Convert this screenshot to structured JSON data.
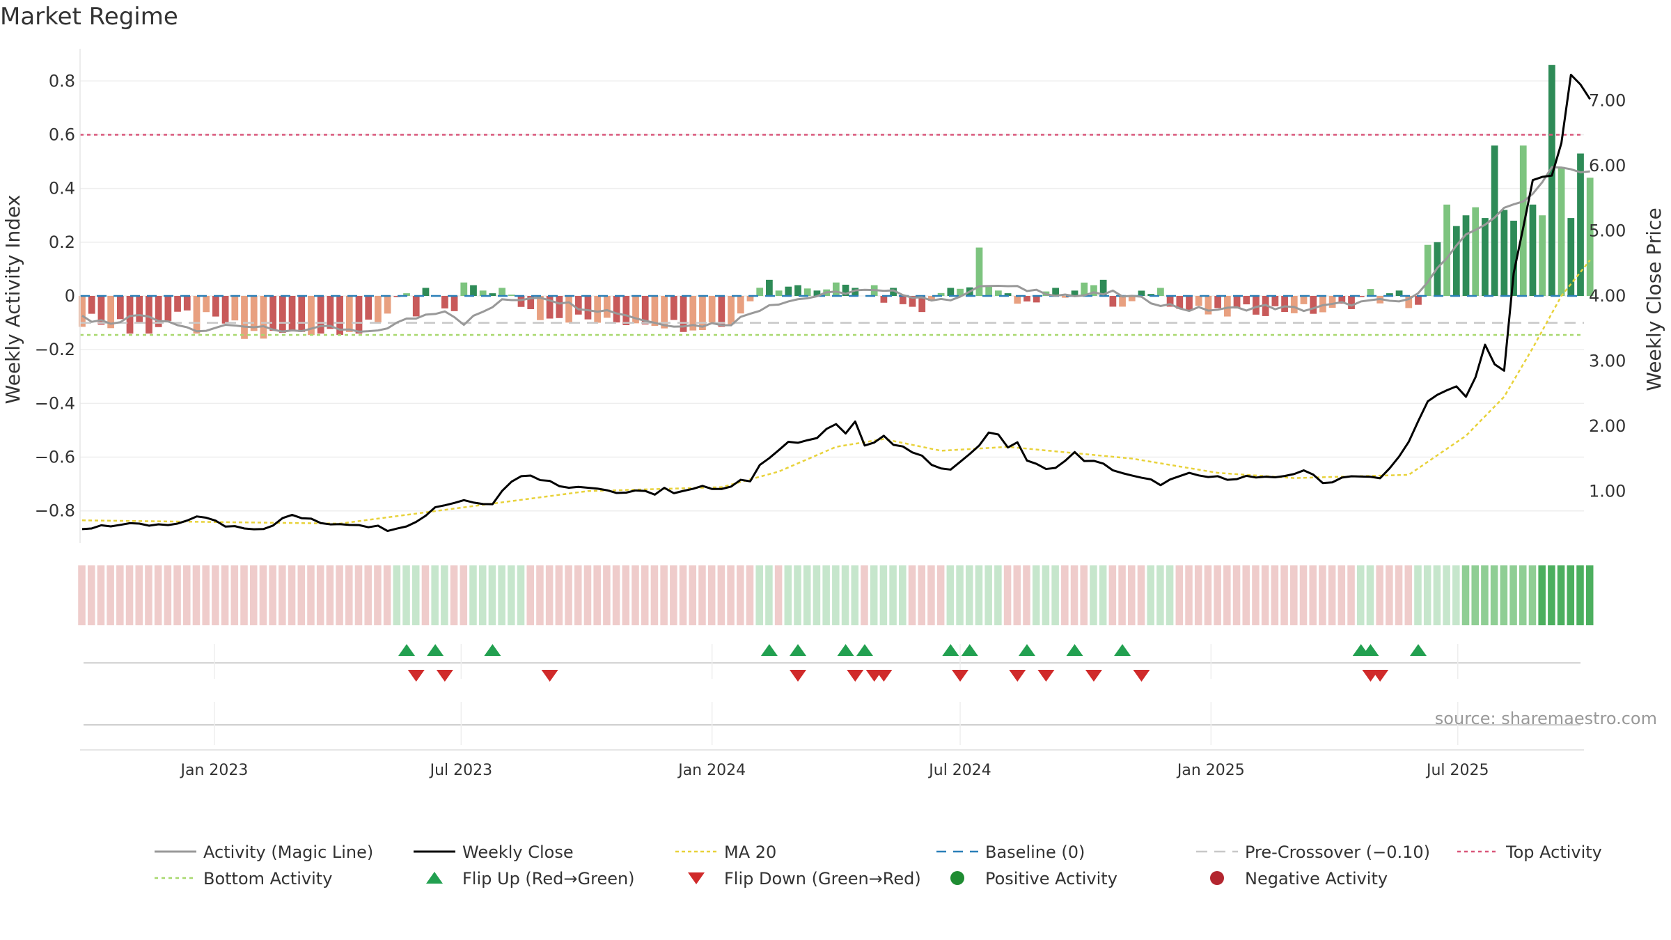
{
  "page": {
    "title": "Market Regime",
    "source": "source: sharemaestro.com"
  },
  "colors": {
    "magic_line": "#999999",
    "close": "#000000",
    "ma": "#e8d23a",
    "baseline": "#2a7fb8",
    "pre_crossover": "#c8c8c8",
    "top": "#d9577a",
    "bottom": "#a8d86e",
    "flip_up": "#22a050",
    "flip_down": "#d02a2a",
    "pos_dark": "#2e8b57",
    "pos_light": "#7dc47f",
    "neg_dark": "#c85a5a",
    "neg_light": "#e8a080",
    "band_pos": "#c6e6cc",
    "band_neg": "#efcccb"
  },
  "chart_data": {
    "type": "bar",
    "title": "Market Regime",
    "y_left_label": "Weekly Activity Index",
    "y_right_label": "Weekly Close Price",
    "y_left_range": [
      -0.92,
      0.92
    ],
    "y_left_ticks": [
      "0.8",
      "0.6",
      "0.4",
      "0.2",
      "0",
      "−0.2",
      "−0.4",
      "−0.6",
      "−0.8"
    ],
    "y_left_tick_values": [
      0.8,
      0.6,
      0.4,
      0.2,
      0,
      -0.2,
      -0.4,
      -0.6,
      -0.8
    ],
    "y_right_range": [
      0.2,
      7.8
    ],
    "y_right_ticks": [
      "7.00",
      "6.00",
      "5.00",
      "4.00",
      "3.00",
      "2.00",
      "1.00"
    ],
    "y_right_tick_values": [
      7,
      6,
      5,
      4,
      3,
      2,
      1
    ],
    "x_range": [
      "2022-09-26",
      "2025-09-29"
    ],
    "x_ticks": [
      {
        "date": "2023-01-01",
        "label": "Jan 2023"
      },
      {
        "date": "2023-07-01",
        "label": "Jul 2023"
      },
      {
        "date": "2024-01-01",
        "label": "Jan 2024"
      },
      {
        "date": "2024-07-01",
        "label": "Jul 2024"
      },
      {
        "date": "2025-01-01",
        "label": "Jan 2025"
      },
      {
        "date": "2025-07-01",
        "label": "Jul 2025"
      }
    ],
    "top_activity": 0.6,
    "bottom_activity": -0.145,
    "pre_crossover": -0.1,
    "baseline": 0,
    "activity_anchors": [
      [
        "2022-09-26",
        -0.08
      ],
      [
        "2022-10-17",
        -0.11
      ],
      [
        "2022-11-07",
        -0.07
      ],
      [
        "2022-12-19",
        -0.13
      ],
      [
        "2023-01-16",
        -0.1
      ],
      [
        "2023-02-13",
        -0.13
      ],
      [
        "2023-03-27",
        -0.12
      ],
      [
        "2023-04-24",
        -0.14
      ],
      [
        "2023-05-22",
        -0.09
      ],
      [
        "2023-06-19",
        -0.05
      ],
      [
        "2023-07-03",
        -0.1
      ],
      [
        "2023-07-31",
        -0.02
      ],
      [
        "2023-08-28",
        0.0
      ],
      [
        "2023-09-25",
        -0.04
      ],
      [
        "2023-10-23",
        -0.06
      ],
      [
        "2023-11-20",
        -0.1
      ],
      [
        "2023-12-18",
        -0.11
      ],
      [
        "2024-01-15",
        -0.1
      ],
      [
        "2024-02-12",
        -0.03
      ],
      [
        "2024-03-18",
        0.0
      ],
      [
        "2024-04-15",
        0.02
      ],
      [
        "2024-05-20",
        0.01
      ],
      [
        "2024-06-17",
        -0.02
      ],
      [
        "2024-07-22",
        0.04
      ],
      [
        "2024-08-26",
        0.02
      ],
      [
        "2024-09-23",
        0.0
      ],
      [
        "2024-10-21",
        0.01
      ],
      [
        "2024-11-18",
        -0.02
      ],
      [
        "2024-12-16",
        -0.05
      ],
      [
        "2025-01-13",
        -0.05
      ],
      [
        "2025-02-10",
        -0.04
      ],
      [
        "2025-03-10",
        -0.05
      ],
      [
        "2025-04-07",
        -0.03
      ],
      [
        "2025-05-05",
        -0.02
      ],
      [
        "2025-05-26",
        -0.02
      ],
      [
        "2025-06-16",
        0.1
      ],
      [
        "2025-07-07",
        0.22
      ],
      [
        "2025-08-04",
        0.32
      ],
      [
        "2025-08-25",
        0.38
      ],
      [
        "2025-09-08",
        0.48
      ],
      [
        "2025-09-29",
        0.46
      ]
    ],
    "bar_anchors": [
      [
        "2022-09-26",
        -0.09
      ],
      [
        "2022-10-24",
        -0.08
      ],
      [
        "2022-11-14",
        -0.12
      ],
      [
        "2022-12-12",
        -0.07
      ],
      [
        "2023-01-09",
        -0.1
      ],
      [
        "2023-02-06",
        -0.15
      ],
      [
        "2023-03-06",
        -0.13
      ],
      [
        "2023-04-03",
        -0.12
      ],
      [
        "2023-05-01",
        -0.11
      ],
      [
        "2023-05-15",
        0.0
      ],
      [
        "2023-05-29",
        -0.08
      ],
      [
        "2023-06-12",
        -0.02
      ],
      [
        "2023-06-26",
        -0.07
      ],
      [
        "2023-07-10",
        0.05
      ],
      [
        "2023-07-31",
        0.01
      ],
      [
        "2023-08-21",
        -0.05
      ],
      [
        "2023-09-18",
        -0.08
      ],
      [
        "2023-10-16",
        -0.1
      ],
      [
        "2023-11-13",
        -0.09
      ],
      [
        "2023-12-11",
        -0.11
      ],
      [
        "2024-01-15",
        -0.1
      ],
      [
        "2024-02-05",
        0.03
      ],
      [
        "2024-02-26",
        0.05
      ],
      [
        "2024-03-25",
        0.04
      ],
      [
        "2024-04-22",
        0.02
      ],
      [
        "2024-05-20",
        -0.03
      ],
      [
        "2024-06-10",
        -0.04
      ],
      [
        "2024-06-24",
        0.03
      ],
      [
        "2024-07-08",
        0.02
      ],
      [
        "2024-07-15",
        0.18
      ],
      [
        "2024-07-29",
        0.02
      ],
      [
        "2024-08-19",
        -0.02
      ],
      [
        "2024-09-16",
        0.01
      ],
      [
        "2024-10-07",
        0.04
      ],
      [
        "2024-10-21",
        -0.04
      ],
      [
        "2024-11-18",
        0.03
      ],
      [
        "2024-12-02",
        -0.04
      ],
      [
        "2025-01-06",
        -0.07
      ],
      [
        "2025-02-03",
        -0.05
      ],
      [
        "2025-03-03",
        -0.05
      ],
      [
        "2025-03-31",
        -0.06
      ],
      [
        "2025-04-28",
        0.01
      ],
      [
        "2025-05-12",
        -0.03
      ],
      [
        "2025-06-02",
        -0.03
      ]
    ],
    "bar_overrides": [
      [
        "2022-10-17",
        -0.12
      ],
      [
        "2022-10-31",
        -0.14
      ],
      [
        "2022-11-14",
        -0.14
      ],
      [
        "2022-12-19",
        -0.14
      ],
      [
        "2023-01-23",
        -0.16
      ],
      [
        "2023-02-13",
        -0.13
      ],
      [
        "2023-03-20",
        -0.14
      ],
      [
        "2023-04-17",
        -0.14
      ],
      [
        "2023-05-22",
        0.01
      ],
      [
        "2023-06-05",
        0.03
      ],
      [
        "2023-07-03",
        0.05
      ],
      [
        "2023-07-10",
        0.04
      ],
      [
        "2023-07-17",
        0.02
      ],
      [
        "2023-07-24",
        0.01
      ],
      [
        "2023-07-31",
        0.03
      ],
      [
        "2023-08-28",
        -0.09
      ],
      [
        "2024-02-12",
        0.06
      ],
      [
        "2024-02-19",
        0.02
      ],
      [
        "2024-03-04",
        0.04
      ],
      [
        "2024-03-18",
        0.02
      ],
      [
        "2024-04-01",
        0.05
      ],
      [
        "2024-04-15",
        0.03
      ],
      [
        "2024-04-29",
        0.04
      ],
      [
        "2024-05-13",
        0.03
      ],
      [
        "2024-06-03",
        -0.06
      ],
      [
        "2024-06-24",
        0.03
      ],
      [
        "2024-07-15",
        0.18
      ],
      [
        "2024-07-22",
        0.04
      ],
      [
        "2024-07-29",
        0.02
      ],
      [
        "2024-08-05",
        0.01
      ],
      [
        "2024-09-09",
        0.03
      ],
      [
        "2024-10-07",
        0.04
      ],
      [
        "2024-10-14",
        0.06
      ],
      [
        "2024-10-21",
        -0.04
      ],
      [
        "2024-10-28",
        -0.04
      ],
      [
        "2024-11-25",
        0.03
      ],
      [
        "2025-05-12",
        0.01
      ],
      [
        "2025-05-19",
        0.02
      ],
      [
        "2025-06-09",
        0.19
      ],
      [
        "2025-06-16",
        0.2
      ],
      [
        "2025-06-23",
        0.34
      ],
      [
        "2025-06-30",
        0.26
      ],
      [
        "2025-07-07",
        0.3
      ],
      [
        "2025-07-14",
        0.33
      ],
      [
        "2025-07-21",
        0.29
      ],
      [
        "2025-07-28",
        0.56
      ],
      [
        "2025-08-04",
        0.32
      ],
      [
        "2025-08-11",
        0.28
      ],
      [
        "2025-08-18",
        0.56
      ],
      [
        "2025-08-25",
        0.34
      ],
      [
        "2025-09-01",
        0.3
      ],
      [
        "2025-09-08",
        0.86
      ],
      [
        "2025-09-15",
        0.48
      ],
      [
        "2025-09-22",
        0.29
      ],
      [
        "2025-09-29",
        0.53
      ],
      [
        "2025-10-06",
        0.44
      ]
    ],
    "close_anchors": [
      [
        "2022-09-26",
        0.4
      ],
      [
        "2022-10-10",
        0.48
      ],
      [
        "2022-11-07",
        0.47
      ],
      [
        "2022-12-05",
        0.47
      ],
      [
        "2022-12-19",
        0.63
      ],
      [
        "2023-01-09",
        0.47
      ],
      [
        "2023-02-06",
        0.43
      ],
      [
        "2023-02-27",
        0.63
      ],
      [
        "2023-03-20",
        0.51
      ],
      [
        "2023-04-17",
        0.5
      ],
      [
        "2023-05-08",
        0.42
      ],
      [
        "2023-05-29",
        0.52
      ],
      [
        "2023-06-12",
        0.76
      ],
      [
        "2023-07-03",
        0.86
      ],
      [
        "2023-07-24",
        0.82
      ],
      [
        "2023-08-07",
        1.17
      ],
      [
        "2023-08-21",
        1.26
      ],
      [
        "2023-09-11",
        1.08
      ],
      [
        "2023-10-02",
        1.08
      ],
      [
        "2023-10-23",
        0.98
      ],
      [
        "2023-11-13",
        0.98
      ],
      [
        "2023-12-04",
        0.95
      ],
      [
        "2023-12-25",
        1.05
      ],
      [
        "2024-01-15",
        1.07
      ],
      [
        "2024-02-05",
        1.43
      ],
      [
        "2024-02-26",
        1.73
      ],
      [
        "2024-03-18",
        1.8
      ],
      [
        "2024-04-01",
        2.05
      ],
      [
        "2024-04-15",
        1.7
      ],
      [
        "2024-05-06",
        1.77
      ],
      [
        "2024-05-27",
        1.6
      ],
      [
        "2024-06-17",
        1.33
      ],
      [
        "2024-07-08",
        1.55
      ],
      [
        "2024-07-22",
        1.82
      ],
      [
        "2024-08-12",
        1.55
      ],
      [
        "2024-09-02",
        1.32
      ],
      [
        "2024-09-23",
        1.53
      ],
      [
        "2024-10-14",
        1.4
      ],
      [
        "2024-11-04",
        1.22
      ],
      [
        "2024-11-25",
        1.12
      ],
      [
        "2024-12-16",
        1.25
      ],
      [
        "2025-01-06",
        1.2
      ],
      [
        "2025-01-27",
        1.22
      ],
      [
        "2025-02-17",
        1.18
      ],
      [
        "2025-03-10",
        1.33
      ],
      [
        "2025-03-24",
        1.12
      ],
      [
        "2025-04-14",
        1.25
      ],
      [
        "2025-05-05",
        1.18
      ],
      [
        "2025-05-19",
        1.52
      ],
      [
        "2025-06-09",
        2.33
      ],
      [
        "2025-06-23",
        2.65
      ],
      [
        "2025-07-07",
        2.55
      ],
      [
        "2025-07-21",
        3.25
      ],
      [
        "2025-07-28",
        2.85
      ],
      [
        "2025-08-04",
        3.4
      ],
      [
        "2025-08-18",
        3.8
      ],
      [
        "2025-09-01",
        4.85
      ],
      [
        "2025-09-08",
        6.6
      ],
      [
        "2025-09-22",
        7.35
      ],
      [
        "2025-10-06",
        7.05
      ]
    ],
    "close_overrides": [
      [
        "2023-11-27",
        1.05
      ],
      [
        "2024-01-29",
        1.15
      ],
      [
        "2024-04-15",
        2.07
      ],
      [
        "2024-04-22",
        1.7
      ],
      [
        "2024-05-06",
        1.85
      ],
      [
        "2024-06-24",
        1.33
      ],
      [
        "2024-07-08",
        1.57
      ],
      [
        "2024-07-22",
        1.9
      ],
      [
        "2024-07-29",
        1.87
      ],
      [
        "2024-08-12",
        1.75
      ],
      [
        "2024-09-23",
        1.6
      ],
      [
        "2025-06-09",
        2.38
      ],
      [
        "2025-06-16",
        2.48
      ],
      [
        "2025-06-23",
        2.55
      ],
      [
        "2025-07-07",
        2.45
      ],
      [
        "2025-07-14",
        2.75
      ],
      [
        "2025-07-21",
        3.25
      ],
      [
        "2025-07-28",
        2.95
      ],
      [
        "2025-08-04",
        2.85
      ],
      [
        "2025-08-11",
        4.35
      ],
      [
        "2025-08-18",
        5.05
      ],
      [
        "2025-08-25",
        5.78
      ],
      [
        "2025-09-01",
        5.83
      ],
      [
        "2025-09-08",
        5.85
      ],
      [
        "2025-09-15",
        6.35
      ],
      [
        "2025-09-22",
        7.4
      ],
      [
        "2025-09-29",
        7.25
      ]
    ],
    "ma_anchors": [
      [
        "2022-09-26",
        0.55
      ],
      [
        "2023-04-03",
        0.5
      ],
      [
        "2023-07-03",
        0.75
      ],
      [
        "2023-10-02",
        1.0
      ],
      [
        "2024-01-08",
        1.06
      ],
      [
        "2024-02-19",
        1.3
      ],
      [
        "2024-04-01",
        1.68
      ],
      [
        "2024-05-06",
        1.8
      ],
      [
        "2024-06-17",
        1.62
      ],
      [
        "2024-08-05",
        1.68
      ],
      [
        "2024-11-04",
        1.5
      ],
      [
        "2025-01-06",
        1.28
      ],
      [
        "2025-03-03",
        1.2
      ],
      [
        "2025-05-26",
        1.25
      ],
      [
        "2025-07-07",
        1.85
      ],
      [
        "2025-08-04",
        2.45
      ],
      [
        "2025-08-25",
        3.2
      ],
      [
        "2025-09-15",
        4.0
      ],
      [
        "2025-10-06",
        4.55
      ]
    ],
    "regime_bands": [
      [
        "2023-05-15",
        "2023-05-29",
        "pos"
      ],
      [
        "2023-06-12",
        "2023-06-19",
        "pos"
      ],
      [
        "2023-07-10",
        "2023-08-14",
        "pos"
      ],
      [
        "2024-02-05",
        "2024-02-12",
        "pos"
      ],
      [
        "2024-02-26",
        "2024-04-15",
        "pos"
      ],
      [
        "2024-04-29",
        "2024-05-06",
        "pos"
      ],
      [
        "2024-05-13",
        "2024-05-20",
        "pos"
      ],
      [
        "2024-06-24",
        "2024-07-01",
        "pos"
      ],
      [
        "2024-07-08",
        "2024-07-29",
        "pos"
      ],
      [
        "2024-08-26",
        "2024-09-09",
        "pos"
      ],
      [
        "2024-10-07",
        "2024-10-14",
        "pos"
      ],
      [
        "2024-11-18",
        "2024-12-02",
        "pos"
      ],
      [
        "2025-04-21",
        "2025-04-28",
        "pos"
      ],
      [
        "2025-06-02",
        "2025-10-06",
        "pos"
      ]
    ],
    "flip_up_dates": [
      "2023-05-22",
      "2023-06-12",
      "2023-07-24",
      "2024-02-12",
      "2024-03-04",
      "2024-04-08",
      "2024-04-22",
      "2024-06-24",
      "2024-07-08",
      "2024-08-19",
      "2024-09-23",
      "2024-10-28",
      "2025-04-21",
      "2025-04-28",
      "2025-06-02"
    ],
    "flip_down_dates": [
      "2023-05-29",
      "2023-06-19",
      "2023-09-04",
      "2024-03-04",
      "2024-04-15",
      "2024-04-29",
      "2024-05-06",
      "2024-07-01",
      "2024-08-12",
      "2024-09-02",
      "2024-10-07",
      "2024-11-11",
      "2025-04-28",
      "2025-05-05"
    ],
    "legend": [
      {
        "key": "magic",
        "label": "Activity (Magic Line)"
      },
      {
        "key": "close",
        "label": "Weekly Close"
      },
      {
        "key": "ma",
        "label": "MA 20"
      },
      {
        "key": "baseline",
        "label": "Baseline (0)"
      },
      {
        "key": "pre",
        "label": "Pre-Crossover (−0.10)"
      },
      {
        "key": "top",
        "label": "Top Activity"
      },
      {
        "key": "bottom",
        "label": "Bottom Activity"
      },
      {
        "key": "flipup",
        "label": "Flip Up (Red→Green)"
      },
      {
        "key": "flipdown",
        "label": "Flip Down (Green→Red)"
      },
      {
        "key": "posdot",
        "label": "Positive Activity"
      },
      {
        "key": "negdot",
        "label": "Negative Activity"
      }
    ]
  }
}
